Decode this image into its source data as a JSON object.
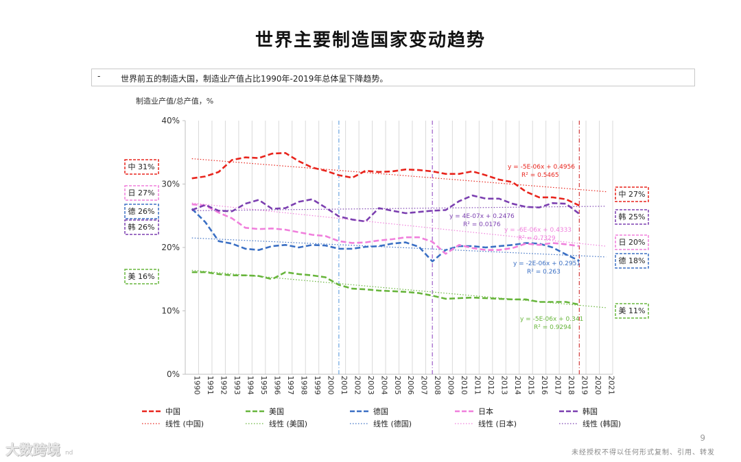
{
  "page": {
    "title": "世界主要制造国家变动趋势",
    "bullet": "-",
    "note": "世界前五的制造大国，制造业产值占比1990年-2019年总体呈下降趋势。",
    "unit_label": "制造业产值/总产值，%",
    "page_number": "9",
    "footer": "未经授权不得以任何形式复制、引用、转发",
    "brand": "大数跨境",
    "brand_sub": "nd"
  },
  "chart_data": {
    "type": "line",
    "title": "世界主要制造国家变动趋势",
    "ylabel": "制造业产值/总产值，%",
    "ylim": [
      0,
      40
    ],
    "yticks": [
      0,
      10,
      20,
      30,
      40
    ],
    "ytick_labels": [
      "0%",
      "10%",
      "20%",
      "30%",
      "40%"
    ],
    "categories": [
      "1990",
      "1991",
      "1992",
      "1993",
      "1994",
      "1995",
      "1996",
      "1997",
      "1998",
      "1999",
      "2000",
      "2001",
      "2002",
      "2003",
      "2004",
      "2005",
      "2006",
      "2007",
      "2008",
      "2009",
      "2010",
      "2011",
      "2012",
      "2013",
      "2014",
      "2015",
      "2016",
      "2017",
      "2018",
      "2019",
      "2020",
      "2021"
    ],
    "series": [
      {
        "name": "中国",
        "color": "#e8241c",
        "values": [
          30.9,
          31.2,
          31.9,
          33.8,
          34.2,
          34.1,
          34.8,
          34.9,
          33.6,
          32.6,
          32.1,
          31.4,
          31.0,
          32.1,
          31.9,
          32.0,
          32.3,
          32.2,
          32.0,
          31.6,
          31.6,
          32.0,
          31.4,
          30.7,
          30.3,
          28.8,
          27.9,
          27.9,
          27.6,
          26.6,
          null,
          null
        ],
        "trend_label": "线性 (中国)",
        "eq": "y = -5E-06x + 0.4956",
        "r2": "R² = 0.5465",
        "start_label": "中 31%",
        "end_label": "中 27%"
      },
      {
        "name": "美国",
        "color": "#67b53b",
        "values": [
          16.1,
          16.1,
          15.8,
          15.6,
          15.6,
          15.5,
          15.0,
          16.1,
          15.8,
          15.6,
          15.3,
          14.1,
          13.5,
          13.4,
          13.2,
          13.1,
          13.0,
          12.8,
          12.4,
          11.9,
          12.0,
          12.1,
          12.0,
          11.9,
          11.8,
          11.8,
          11.4,
          11.4,
          11.4,
          11.0,
          null,
          null
        ],
        "trend_label": "线性 (美国)",
        "eq": "y = -5E-06x + 0.341",
        "r2": "R² = 0.9294",
        "start_label": "美 16%",
        "end_label": "美 11%"
      },
      {
        "name": "德国",
        "color": "#3a6fc4",
        "values": [
          26.1,
          24.0,
          21.0,
          20.6,
          19.8,
          19.6,
          20.2,
          20.4,
          20.0,
          20.4,
          20.3,
          19.8,
          19.8,
          20.1,
          20.2,
          20.6,
          20.8,
          20.1,
          17.8,
          19.6,
          20.2,
          20.2,
          20.0,
          20.2,
          20.4,
          20.7,
          20.6,
          20.0,
          18.9,
          17.9,
          null,
          null
        ],
        "trend_label": "线性 (德国)",
        "eq": "y = -2E-06x + 0.2951",
        "r2": "R² = 0.263",
        "start_label": "德 26%",
        "end_label": "德 18%"
      },
      {
        "name": "日本",
        "color": "#f07fdc",
        "values": [
          26.8,
          26.6,
          25.5,
          24.6,
          23.1,
          22.9,
          23.0,
          22.8,
          22.4,
          22.0,
          21.8,
          21.0,
          20.7,
          20.8,
          21.1,
          21.3,
          21.6,
          21.6,
          20.9,
          19.0,
          20.4,
          19.9,
          19.6,
          19.6,
          19.9,
          20.6,
          20.4,
          20.7,
          20.5,
          20.2,
          null,
          null
        ],
        "trend_label": "线性 (日本)",
        "eq": "y = -6E-06x + 0.4333",
        "r2": "R² = 0.7329",
        "start_label": "日 27%",
        "end_label": "日 20%"
      },
      {
        "name": "韩国",
        "color": "#7b3fb0",
        "values": [
          25.9,
          26.7,
          25.8,
          25.7,
          26.9,
          27.5,
          26.1,
          26.2,
          27.2,
          27.6,
          26.3,
          24.9,
          24.4,
          24.1,
          26.2,
          25.8,
          25.4,
          25.6,
          25.8,
          25.9,
          27.3,
          28.2,
          27.7,
          27.7,
          26.9,
          26.4,
          26.3,
          27.0,
          26.9,
          25.3,
          null,
          null
        ],
        "trend_label": "线性 (韩国)",
        "eq": "y = 4E-07x + 0.2476",
        "r2": "R² = 0.0176",
        "start_label": "韩 26%",
        "end_label": "韩 25%"
      }
    ],
    "trendlines": [
      {
        "series": "中国",
        "y_start": 34.0,
        "y_end": 28.8
      },
      {
        "series": "美国",
        "y_start": 16.4,
        "y_end": 10.5
      },
      {
        "series": "德国",
        "y_start": 21.5,
        "y_end": 18.5
      },
      {
        "series": "日本",
        "y_start": 27.0,
        "y_end": 20.2
      },
      {
        "series": "韩国",
        "y_start": 25.8,
        "y_end": 26.5
      }
    ],
    "marker_years": [
      "2001",
      "2008",
      "2019"
    ],
    "legend_position": "bottom",
    "grid": true
  }
}
